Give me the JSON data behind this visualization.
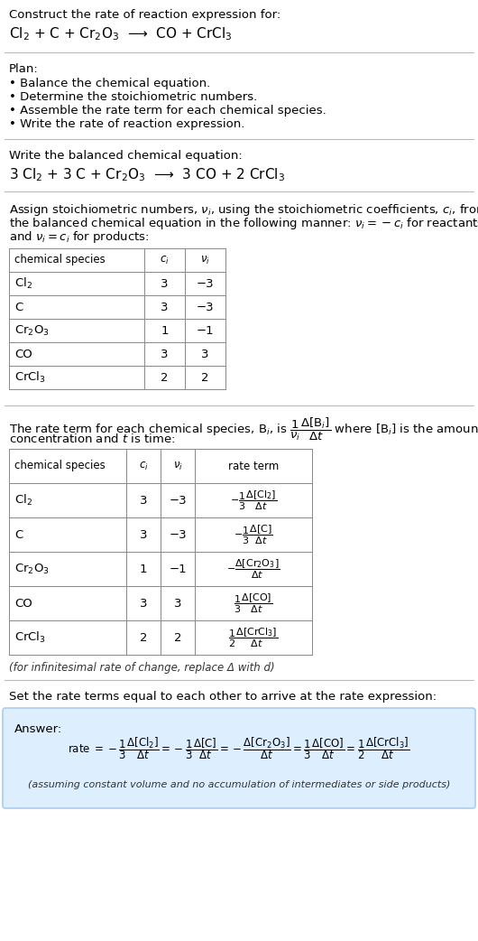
{
  "bg_color": "#ffffff",
  "text_color": "#000000",
  "title_line1": "Construct the rate of reaction expression for:",
  "title_line2": "Cl$_2$ + C + Cr$_2$O$_3$  ⟶  CO + CrCl$_3$",
  "plan_header": "Plan:",
  "plan_items": [
    "• Balance the chemical equation.",
    "• Determine the stoichiometric numbers.",
    "• Assemble the rate term for each chemical species.",
    "• Write the rate of reaction expression."
  ],
  "balanced_header": "Write the balanced chemical equation:",
  "balanced_eq": "3 Cl$_2$ + 3 C + Cr$_2$O$_3$  ⟶  3 CO + 2 CrCl$_3$",
  "stoich_intro": "Assign stoichiometric numbers, $\\nu_i$, using the stoichiometric coefficients, $c_i$, from\nthe balanced chemical equation in the following manner: $\\nu_i = -c_i$ for reactants\nand $\\nu_i = c_i$ for products:",
  "table1_headers": [
    "chemical species",
    "$c_i$",
    "$\\nu_i$"
  ],
  "table1_rows": [
    [
      "Cl$_2$",
      "3",
      "−3"
    ],
    [
      "C",
      "3",
      "−3"
    ],
    [
      "Cr$_2$O$_3$",
      "1",
      "−1"
    ],
    [
      "CO",
      "3",
      "3"
    ],
    [
      "CrCl$_3$",
      "2",
      "2"
    ]
  ],
  "rate_term_intro1": "The rate term for each chemical species, B$_i$, is $\\dfrac{1}{\\nu_i}\\dfrac{\\Delta[\\mathrm{B}_i]}{\\Delta t}$ where [B$_i$] is the amount",
  "rate_term_intro2": "concentration and $t$ is time:",
  "table2_headers": [
    "chemical species",
    "$c_i$",
    "$\\nu_i$",
    "rate term"
  ],
  "table2_rows": [
    [
      "Cl$_2$",
      "3",
      "−3",
      "$-\\dfrac{1}{3}\\dfrac{\\Delta[\\mathrm{Cl}_2]}{\\Delta t}$"
    ],
    [
      "C",
      "3",
      "−3",
      "$-\\dfrac{1}{3}\\dfrac{\\Delta[\\mathrm{C}]}{\\Delta t}$"
    ],
    [
      "Cr$_2$O$_3$",
      "1",
      "−1",
      "$-\\dfrac{\\Delta[\\mathrm{Cr}_2\\mathrm{O}_3]}{\\Delta t}$"
    ],
    [
      "CO",
      "3",
      "3",
      "$\\dfrac{1}{3}\\dfrac{\\Delta[\\mathrm{CO}]}{\\Delta t}$"
    ],
    [
      "CrCl$_3$",
      "2",
      "2",
      "$\\dfrac{1}{2}\\dfrac{\\Delta[\\mathrm{CrCl}_3]}{\\Delta t}$"
    ]
  ],
  "infinitesimal_note": "(for infinitesimal rate of change, replace Δ with d)",
  "set_equal_text": "Set the rate terms equal to each other to arrive at the rate expression:",
  "answer_label": "Answer:",
  "answer_box_color": "#ddeeff",
  "answer_border_color": "#aaccee",
  "rate_expression": "rate $= -\\dfrac{1}{3}\\dfrac{\\Delta[\\mathrm{Cl}_2]}{\\Delta t} = -\\dfrac{1}{3}\\dfrac{\\Delta[\\mathrm{C}]}{\\Delta t} = -\\dfrac{\\Delta[\\mathrm{Cr}_2\\mathrm{O}_3]}{\\Delta t} = \\dfrac{1}{3}\\dfrac{\\Delta[\\mathrm{CO}]}{\\Delta t} = \\dfrac{1}{2}\\dfrac{\\Delta[\\mathrm{CrCl}_3]}{\\Delta t}$",
  "assuming_note": "(assuming constant volume and no accumulation of intermediates or side products)"
}
